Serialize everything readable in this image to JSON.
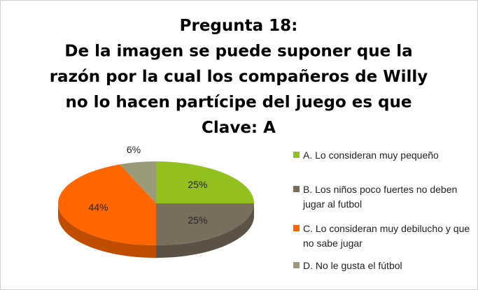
{
  "chart_data": {
    "type": "pie3d",
    "title": [
      "Pregunta 18:",
      "De la imagen se puede suponer que la",
      "razón por la cual los compañeros de Willy",
      "no lo hacen partícipe del juego es que",
      "Clave: A"
    ],
    "categories": [
      "A. Lo consideran muy pequeño",
      "B. Los niños poco fuertes no deben jugar al futbol",
      "C. Lo consideran muy debilucho y que no sabe jugar",
      "D. No le gusta el fútbol"
    ],
    "values": [
      25,
      25,
      44,
      6
    ],
    "value_labels": [
      "25%",
      "25%",
      "44%",
      "6%"
    ],
    "colors": [
      "#92c01f",
      "#7a6e5d",
      "#ff6600",
      "#9a9a78"
    ],
    "legend": "right"
  }
}
